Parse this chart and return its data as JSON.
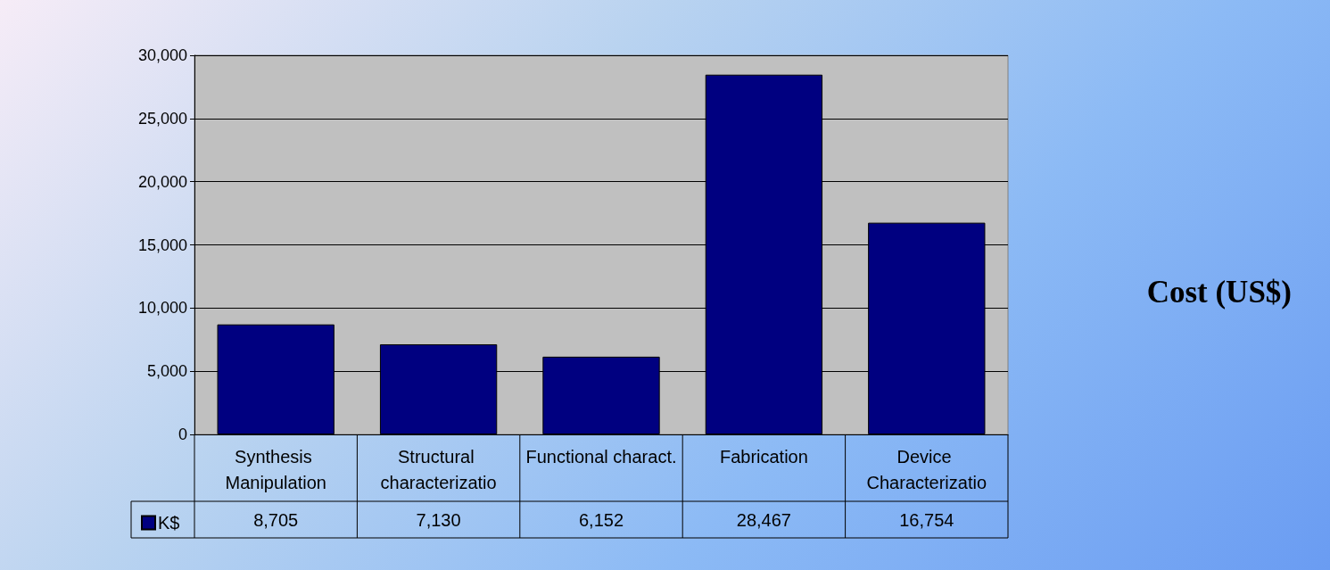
{
  "chart_data": {
    "type": "bar",
    "title": "Cost (US$)",
    "categories": [
      "Synthesis Manipulation",
      "Structural characterizatio",
      "Functional charact.",
      "Fabrication",
      "Device Characterizatio"
    ],
    "series": [
      {
        "name": "K$",
        "color": "#000080",
        "values": [
          8705,
          7130,
          6152,
          28467,
          16754
        ],
        "value_labels": [
          "8,705",
          "7,130",
          "6,152",
          "28,467",
          "16,754"
        ]
      }
    ],
    "ylim": [
      0,
      30000
    ],
    "yticks": [
      0,
      {
        "value": 5000,
        "label": "5,000"
      },
      {
        "value": 10000,
        "label": "10,000"
      },
      {
        "value": 15000,
        "label": "15,000"
      },
      {
        "value": 20000,
        "label": "20,000"
      },
      {
        "value": 25000,
        "label": "25,000"
      },
      {
        "value": 30000,
        "label": "30,000"
      }
    ],
    "grid": "y",
    "legend": "bottom"
  }
}
